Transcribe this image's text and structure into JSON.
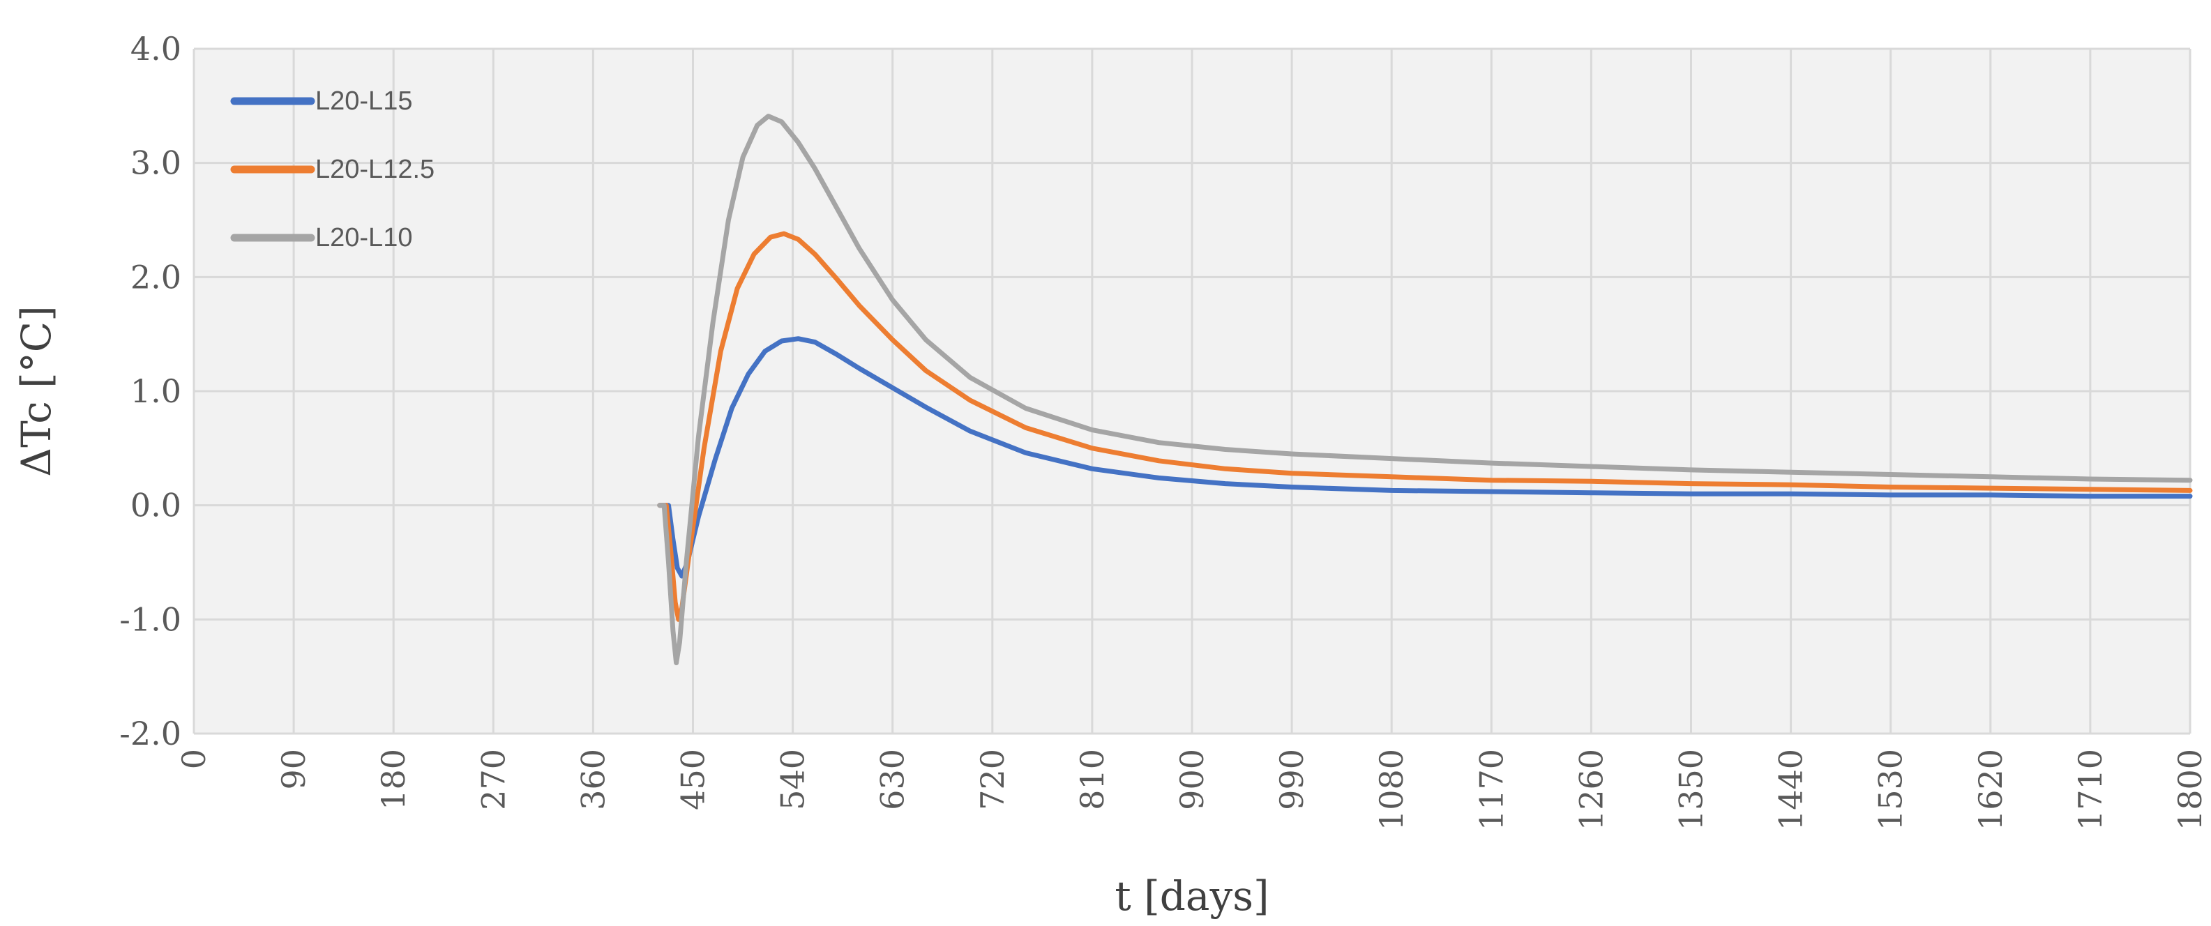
{
  "chart_data": {
    "type": "line",
    "xlabel": "t [days]",
    "ylabel": "ΔTc [°C]",
    "xlim": [
      0,
      1800
    ],
    "ylim": [
      -2.0,
      4.0
    ],
    "xticks": [
      0,
      90,
      180,
      270,
      360,
      450,
      540,
      630,
      720,
      810,
      900,
      990,
      1080,
      1170,
      1260,
      1350,
      1440,
      1530,
      1620,
      1710,
      1800
    ],
    "yticks": [
      "-2.0",
      "-1.0",
      "0.0",
      "1.0",
      "2.0",
      "3.0",
      "4.0"
    ],
    "grid": true,
    "legend_position": "top-left",
    "series": [
      {
        "name": "L20-L15",
        "color": "#4472c4",
        "points": [
          [
            420,
            0
          ],
          [
            428,
            0
          ],
          [
            432,
            -0.3
          ],
          [
            436,
            -0.55
          ],
          [
            440,
            -0.62
          ],
          [
            445,
            -0.5
          ],
          [
            455,
            -0.1
          ],
          [
            470,
            0.4
          ],
          [
            485,
            0.85
          ],
          [
            500,
            1.15
          ],
          [
            515,
            1.35
          ],
          [
            530,
            1.44
          ],
          [
            545,
            1.46
          ],
          [
            560,
            1.43
          ],
          [
            580,
            1.32
          ],
          [
            600,
            1.2
          ],
          [
            630,
            1.03
          ],
          [
            660,
            0.86
          ],
          [
            700,
            0.65
          ],
          [
            750,
            0.46
          ],
          [
            810,
            0.32
          ],
          [
            870,
            0.24
          ],
          [
            930,
            0.19
          ],
          [
            990,
            0.16
          ],
          [
            1080,
            0.13
          ],
          [
            1170,
            0.12
          ],
          [
            1260,
            0.11
          ],
          [
            1350,
            0.1
          ],
          [
            1440,
            0.1
          ],
          [
            1530,
            0.09
          ],
          [
            1620,
            0.09
          ],
          [
            1710,
            0.08
          ],
          [
            1800,
            0.08
          ]
        ]
      },
      {
        "name": "L20-L12.5",
        "color": "#ed7d31",
        "points": [
          [
            420,
            0
          ],
          [
            426,
            0
          ],
          [
            430,
            -0.4
          ],
          [
            434,
            -0.85
          ],
          [
            437,
            -1.0
          ],
          [
            440,
            -0.9
          ],
          [
            447,
            -0.4
          ],
          [
            460,
            0.5
          ],
          [
            475,
            1.35
          ],
          [
            490,
            1.9
          ],
          [
            505,
            2.2
          ],
          [
            520,
            2.35
          ],
          [
            532,
            2.38
          ],
          [
            545,
            2.33
          ],
          [
            560,
            2.2
          ],
          [
            580,
            1.98
          ],
          [
            600,
            1.75
          ],
          [
            630,
            1.45
          ],
          [
            660,
            1.18
          ],
          [
            700,
            0.92
          ],
          [
            750,
            0.68
          ],
          [
            810,
            0.5
          ],
          [
            870,
            0.39
          ],
          [
            930,
            0.32
          ],
          [
            990,
            0.28
          ],
          [
            1080,
            0.25
          ],
          [
            1170,
            0.22
          ],
          [
            1260,
            0.21
          ],
          [
            1350,
            0.19
          ],
          [
            1440,
            0.18
          ],
          [
            1530,
            0.16
          ],
          [
            1620,
            0.15
          ],
          [
            1710,
            0.14
          ],
          [
            1800,
            0.13
          ]
        ]
      },
      {
        "name": "L20-L10",
        "color": "#a5a5a5",
        "points": [
          [
            420,
            0
          ],
          [
            424,
            0
          ],
          [
            428,
            -0.5
          ],
          [
            432,
            -1.1
          ],
          [
            435,
            -1.38
          ],
          [
            438,
            -1.2
          ],
          [
            444,
            -0.5
          ],
          [
            455,
            0.6
          ],
          [
            468,
            1.6
          ],
          [
            482,
            2.5
          ],
          [
            495,
            3.05
          ],
          [
            508,
            3.33
          ],
          [
            518,
            3.41
          ],
          [
            530,
            3.36
          ],
          [
            545,
            3.18
          ],
          [
            560,
            2.95
          ],
          [
            580,
            2.6
          ],
          [
            600,
            2.25
          ],
          [
            630,
            1.8
          ],
          [
            660,
            1.45
          ],
          [
            700,
            1.12
          ],
          [
            750,
            0.85
          ],
          [
            810,
            0.66
          ],
          [
            870,
            0.55
          ],
          [
            930,
            0.49
          ],
          [
            990,
            0.45
          ],
          [
            1080,
            0.41
          ],
          [
            1170,
            0.37
          ],
          [
            1260,
            0.34
          ],
          [
            1350,
            0.31
          ],
          [
            1440,
            0.29
          ],
          [
            1530,
            0.27
          ],
          [
            1620,
            0.25
          ],
          [
            1710,
            0.23
          ],
          [
            1800,
            0.22
          ]
        ]
      }
    ]
  }
}
